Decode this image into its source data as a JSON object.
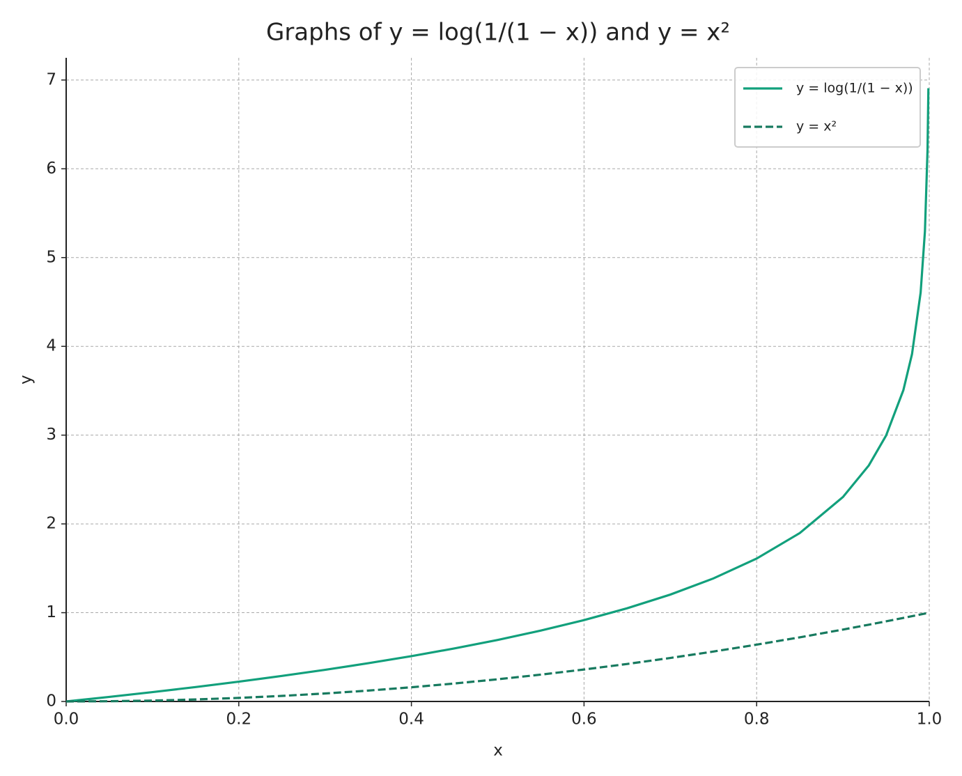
{
  "chart_data": {
    "type": "line",
    "title": "Graphs of y = log(1/(1 − x)) and y = x²",
    "x_label": "x",
    "y_label": "y",
    "x": [
      0,
      0.05,
      0.1,
      0.15,
      0.2,
      0.25,
      0.3,
      0.35,
      0.4,
      0.45,
      0.5,
      0.55,
      0.6,
      0.65,
      0.7,
      0.75,
      0.8,
      0.85,
      0.9,
      0.93,
      0.95,
      0.97,
      0.98,
      0.99,
      0.995,
      0.998,
      0.999
    ],
    "series": [
      {
        "name": "y = log(1/(1 − x))",
        "color": "#12a07c",
        "linestyle": "solid",
        "values": [
          0,
          0.0513,
          0.1054,
          0.1625,
          0.2231,
          0.2877,
          0.3567,
          0.4308,
          0.5108,
          0.5978,
          0.6931,
          0.7985,
          0.9163,
          1.0498,
          1.204,
          1.3863,
          1.6094,
          1.8971,
          2.3026,
          2.6593,
          2.9957,
          3.5066,
          3.912,
          4.6052,
          5.2983,
          6.2146,
          6.9078
        ]
      },
      {
        "name": "y = x²",
        "color": "#177a5f",
        "linestyle": "dashed",
        "values": [
          0,
          0.0025,
          0.01,
          0.0225,
          0.04,
          0.0625,
          0.09,
          0.1225,
          0.16,
          0.2025,
          0.25,
          0.3025,
          0.36,
          0.4225,
          0.49,
          0.5625,
          0.64,
          0.7225,
          0.81,
          0.8649,
          0.9025,
          0.9409,
          0.9604,
          0.9801,
          0.990025,
          0.996004,
          0.998001
        ]
      }
    ],
    "xlim": [
      0,
      1
    ],
    "ylim": [
      0,
      7.25
    ],
    "xticks": [
      {
        "value": 0,
        "label": "0.0"
      },
      0.2,
      0.4,
      0.6,
      0.8,
      {
        "value": 1,
        "label": "1.0"
      }
    ],
    "yticks": [
      0,
      1,
      2,
      3,
      4,
      5,
      6,
      7
    ],
    "grid": true,
    "legend": "upper right"
  }
}
